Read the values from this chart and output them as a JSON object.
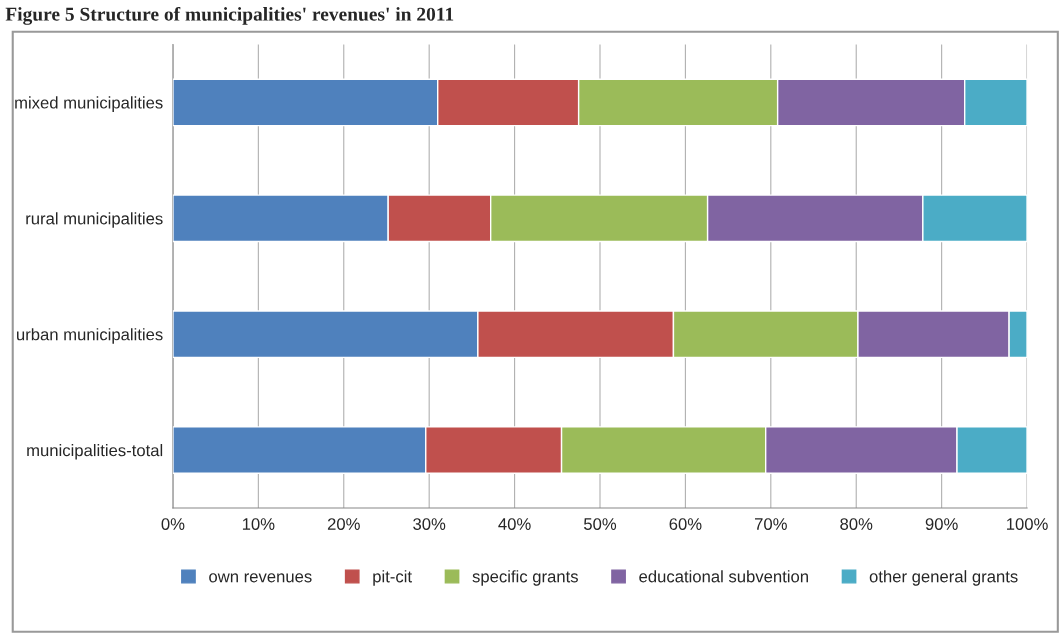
{
  "chart_data": {
    "type": "bar",
    "orientation": "horizontal",
    "stacked": true,
    "title": "Figure 5 Structure of municipalities' revenues' in 2011",
    "categories": [
      "mixed municipalities",
      "rural municipalities",
      "urban municipalities",
      "municipalities-total"
    ],
    "series": [
      {
        "name": "own revenues",
        "color": "#4f81bd",
        "values": [
          31,
          25.2,
          35.7,
          29.6
        ]
      },
      {
        "name": "pit-cit",
        "color": "#c0504d",
        "values": [
          16.5,
          12,
          22.9,
          15.9
        ]
      },
      {
        "name": "specific grants",
        "color": "#9bbb59",
        "values": [
          23.3,
          25.4,
          21.6,
          23.9
        ]
      },
      {
        "name": "educational subvention",
        "color": "#8064a2",
        "values": [
          21.9,
          25.2,
          17.7,
          22.4
        ]
      },
      {
        "name": "other general grants",
        "color": "#4bacc6",
        "values": [
          7.3,
          12.2,
          2.1,
          8.2
        ]
      }
    ],
    "xlim": [
      0,
      100
    ],
    "xticks": [
      {
        "value": 0,
        "label": "0%"
      },
      {
        "value": 10,
        "label": "10%"
      },
      {
        "value": 20,
        "label": "20%"
      },
      {
        "value": 30,
        "label": "30%"
      },
      {
        "value": 40,
        "label": "40%"
      },
      {
        "value": 50,
        "label": "50%"
      },
      {
        "value": 60,
        "label": "60%"
      },
      {
        "value": 70,
        "label": "70%"
      },
      {
        "value": 80,
        "label": "80%"
      },
      {
        "value": 90,
        "label": "90%"
      },
      {
        "value": 100,
        "label": "100%"
      }
    ],
    "grid": "x",
    "legend": "bottom"
  }
}
